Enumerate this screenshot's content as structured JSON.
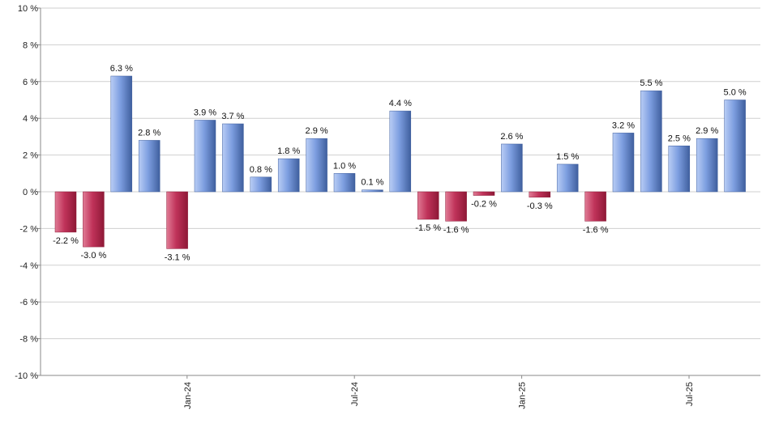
{
  "chart_data": {
    "type": "bar",
    "title": "",
    "xlabel": "",
    "ylabel": "",
    "ylim": [
      -10,
      10
    ],
    "y_ticks": [
      10,
      8,
      6,
      4,
      2,
      0,
      -2,
      -4,
      -6,
      -8,
      -10
    ],
    "y_tick_labels": [
      "10 %",
      "8 %",
      "6 %",
      "4 %",
      "2 %",
      "0 %",
      "-2 %",
      "-4 %",
      "-6 %",
      "-8 %",
      "-10 %"
    ],
    "x_tick_labels": [
      {
        "label": "Jan-24",
        "index": 4
      },
      {
        "label": "Jul-24",
        "index": 10
      },
      {
        "label": "Jan-25",
        "index": 16
      },
      {
        "label": "Jul-25",
        "index": 22
      }
    ],
    "grid": true,
    "legend": "none",
    "values": [
      -2.2,
      -3.0,
      6.3,
      2.8,
      -3.1,
      3.9,
      3.7,
      0.8,
      1.8,
      2.9,
      1.0,
      0.1,
      4.4,
      -1.5,
      -1.6,
      -0.2,
      2.6,
      -0.3,
      1.5,
      -1.6,
      3.2,
      5.5,
      2.5,
      2.9,
      5.0
    ],
    "data_labels": [
      "-2.2 %",
      "-3.0 %",
      "6.3 %",
      "2.8 %",
      "-3.1 %",
      "3.9 %",
      "3.7 %",
      "0.8 %",
      "1.8 %",
      "2.9 %",
      "1.0 %",
      "0.1 %",
      "4.4 %",
      "-1.5 %",
      "-1.6 %",
      "-0.2 %",
      "2.6 %",
      "-0.3 %",
      "1.5 %",
      "-1.6 %",
      "3.2 %",
      "5.5 %",
      "2.5 %",
      "2.9 %",
      "5.0 %"
    ],
    "colors": {
      "positive": "#7d9ee0",
      "positive_dark": "#3f5f9e",
      "positive_light": "#b9cdf5",
      "negative": "#c0335a",
      "negative_dark": "#8e1836",
      "negative_light": "#e07b95"
    }
  }
}
